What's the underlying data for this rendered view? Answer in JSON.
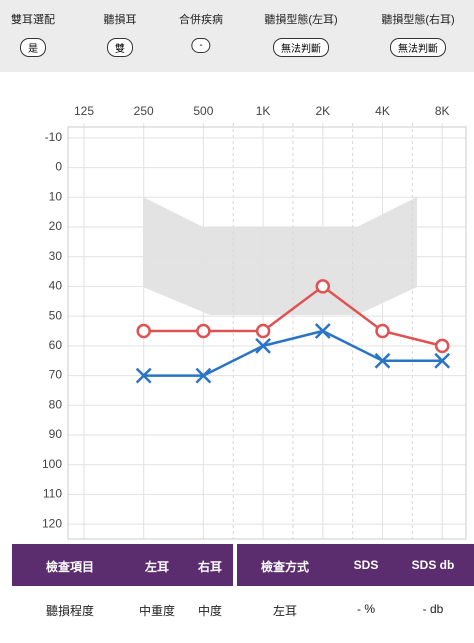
{
  "header": {
    "items": [
      {
        "label": "雙耳選配",
        "value": "是"
      },
      {
        "label": "聽損耳",
        "value": "雙"
      },
      {
        "label": "合併疾病",
        "value": "-"
      },
      {
        "label": "聽損型態(左耳)",
        "value": "無法判斷"
      },
      {
        "label": "聽損型態(右耳)",
        "value": "無法判斷"
      }
    ]
  },
  "chart_data": {
    "type": "line",
    "categories": [
      "125",
      "250",
      "500",
      "1K",
      "2K",
      "4K",
      "8K"
    ],
    "series": [
      {
        "color": "#e05252",
        "marker": "circle",
        "values": [
          null,
          55,
          55,
          55,
          40,
          55,
          60
        ]
      },
      {
        "color": "#2a74c6",
        "marker": "x",
        "values": [
          null,
          70,
          70,
          60,
          55,
          65,
          65
        ]
      }
    ],
    "ylim": [
      -15,
      125
    ],
    "yticks": [
      -10,
      0,
      10,
      20,
      30,
      40,
      50,
      60,
      70,
      80,
      90,
      100,
      110,
      120
    ],
    "y_inverted": true,
    "grid": true
  },
  "table": {
    "left": {
      "header": [
        "檢查項目",
        "左耳",
        "右耳"
      ],
      "rows": [
        [
          "聽損程度",
          "中重度",
          "中度"
        ]
      ]
    },
    "right": {
      "header": [
        "檢查方式",
        "SDS",
        "SDS db"
      ],
      "rows": [
        [
          "左耳",
          "- %",
          "- db"
        ]
      ]
    }
  }
}
